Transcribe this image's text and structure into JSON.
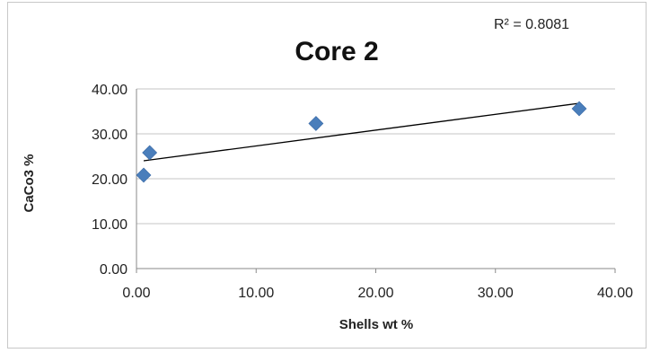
{
  "chart_data": {
    "type": "scatter",
    "title": "Core 2",
    "xlabel": "Shells wt %",
    "ylabel": "CaCo3 %",
    "annotation": "R² = 0.8081",
    "xlim": [
      0,
      40
    ],
    "ylim": [
      0,
      40
    ],
    "xticks": [
      "0.00",
      "10.00",
      "20.00",
      "30.00",
      "40.00"
    ],
    "yticks": [
      "0.00",
      "10.00",
      "20.00",
      "30.00",
      "40.00"
    ],
    "grid": "horizontal",
    "legend": "none",
    "marker_color": "#4a7ebb",
    "trendline_color": "#000000",
    "points": [
      {
        "x": 0.6,
        "y": 20.8
      },
      {
        "x": 1.1,
        "y": 25.8
      },
      {
        "x": 15.0,
        "y": 32.3
      },
      {
        "x": 37.0,
        "y": 35.6
      }
    ],
    "trendline": {
      "x": [
        0.6,
        37.0
      ],
      "y": [
        24.0,
        36.8
      ]
    }
  }
}
